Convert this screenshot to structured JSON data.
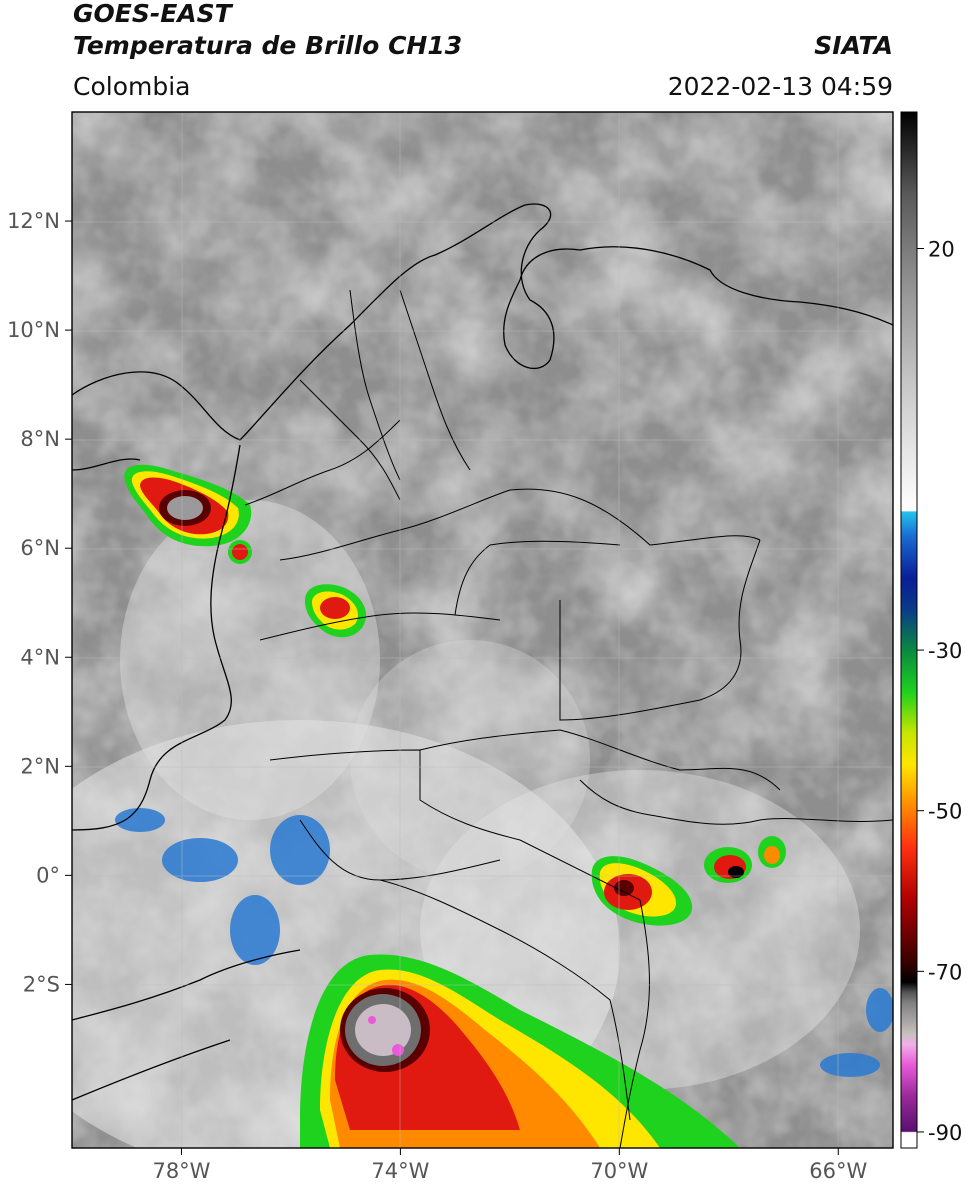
{
  "header": {
    "satellite": "GOES-EAST",
    "product": "Temperatura de Brillo CH13",
    "region": "Colombia",
    "agency": "SIATA",
    "timestamp": "2022-02-13 04:59"
  },
  "map": {
    "lon_range": [
      -80,
      -65
    ],
    "lat_range": [
      -5,
      14
    ],
    "lon_ticks": [
      {
        "value": -78,
        "label": "78°W"
      },
      {
        "value": -74,
        "label": "74°W"
      },
      {
        "value": -70,
        "label": "70°W"
      },
      {
        "value": -66,
        "label": "66°W"
      }
    ],
    "lat_ticks": [
      {
        "value": 12,
        "label": "12°N"
      },
      {
        "value": 10,
        "label": "10°N"
      },
      {
        "value": 8,
        "label": "8°N"
      },
      {
        "value": 6,
        "label": "6°N"
      },
      {
        "value": 4,
        "label": "4°N"
      },
      {
        "value": 2,
        "label": "2°N"
      },
      {
        "value": 0,
        "label": "0°"
      },
      {
        "value": -2,
        "label": "2°S"
      }
    ],
    "grid": true
  },
  "colorbar": {
    "range": [
      -92,
      37
    ],
    "ticks": [
      {
        "value": 20,
        "label": "20"
      },
      {
        "value": -30,
        "label": "-30"
      },
      {
        "value": -50,
        "label": "-50"
      },
      {
        "value": -70,
        "label": "-70"
      },
      {
        "value": -90,
        "label": "-90"
      }
    ],
    "colors": {
      "warm_top": "#000000",
      "neutral": "#ffffff",
      "cyan": "#22c4ee",
      "blue": "#0a1e96",
      "green": "#1ed21e",
      "yellow": "#ffe600",
      "orange": "#ff8a00",
      "red": "#e01a10",
      "darkred": "#5a0000",
      "pink": "#e85ad8",
      "purple": "#6a1a7a"
    }
  }
}
